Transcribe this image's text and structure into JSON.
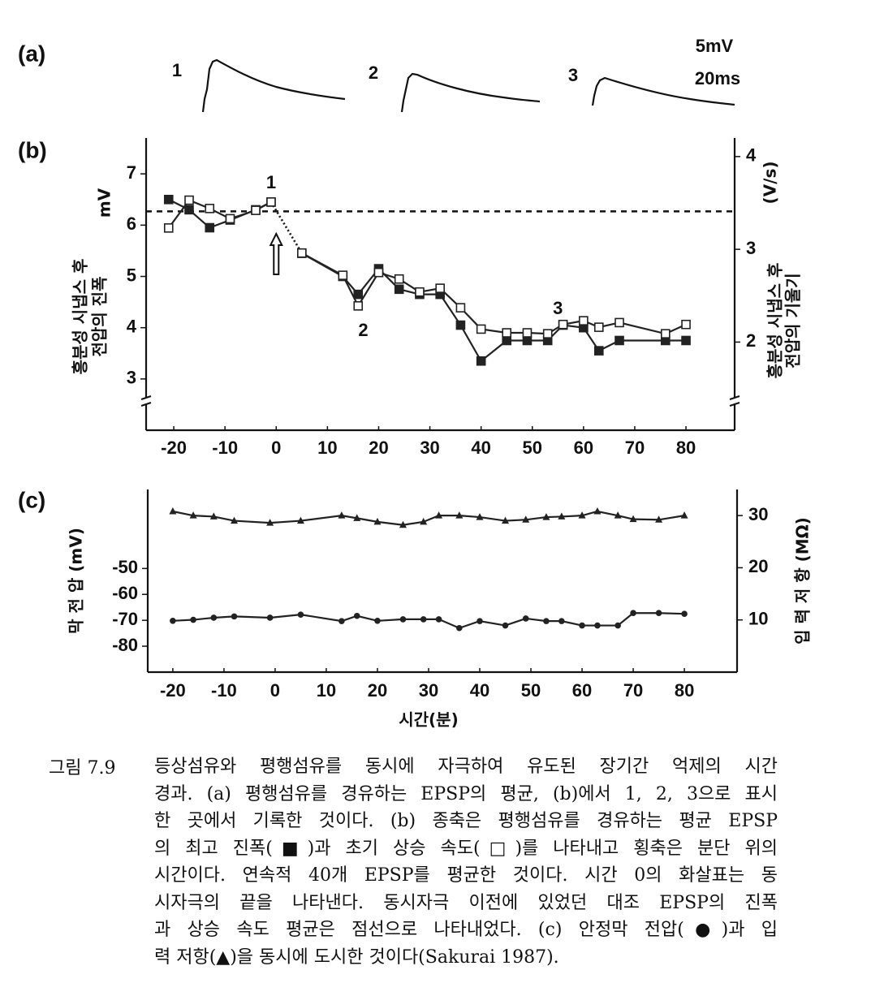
{
  "panel_a": {
    "label": "(a)",
    "trace_labels": [
      "1",
      "2",
      "3"
    ],
    "scale": [
      "5mV",
      "20ms"
    ]
  },
  "chart_data": [
    {
      "type": "line",
      "title": "(b)",
      "x": [
        -21,
        -17,
        -13,
        -9,
        -4,
        -1,
        5,
        13,
        16,
        20,
        24,
        28,
        32,
        36,
        40,
        45,
        49,
        53,
        56,
        60,
        63,
        67,
        76,
        80
      ],
      "series": [
        {
          "color": "#222",
          "marker": "square-filled",
          "values": [
            6.5,
            6.3,
            5.95,
            6.1,
            6.3,
            6.45,
            5.45,
            5.0,
            4.65,
            5.15,
            4.75,
            4.65,
            4.65,
            4.05,
            3.35,
            3.75,
            3.75,
            3.75,
            4.05,
            4.0,
            3.55,
            3.75,
            3.75,
            3.75
          ]
        },
        {
          "color": "#222",
          "marker": "square-open",
          "axis": "y2",
          "values": [
            3.23,
            3.53,
            3.44,
            3.33,
            3.42,
            3.51,
            2.96,
            2.72,
            2.39,
            2.75,
            2.68,
            2.54,
            2.58,
            2.37,
            2.14,
            2.1,
            2.1,
            2.09,
            2.19,
            2.23,
            2.16,
            2.21,
            2.09,
            2.19
          ]
        }
      ],
      "xlim": [
        -25.4,
        89.5
      ],
      "xticks": [
        -20,
        -10,
        0,
        10,
        20,
        30,
        40,
        50,
        60,
        70,
        80
      ],
      "ylim": [
        2,
        7.7
      ],
      "yticks": [
        3,
        4,
        5,
        6,
        7
      ],
      "y2lim": [
        1.05,
        4.2
      ],
      "y2ticks": [
        2,
        3,
        4
      ],
      "ylabel": "mV",
      "ylabel_note": [
        "흥분성 시냅스 후",
        "전압의 진폭"
      ],
      "y2label": "(V/s)",
      "y2label_note": [
        "흥분성 시냅스 후",
        "전압의 기울기"
      ],
      "reference_line": 6.27,
      "arrow_x": 0,
      "annotations": [
        {
          "text": "1",
          "x": -1,
          "y": 6.81
        },
        {
          "text": "2",
          "x": 17,
          "y": 3.93
        },
        {
          "text": "3",
          "x": 55,
          "y": 4.36
        }
      ]
    },
    {
      "type": "line",
      "title": "(c)",
      "x": [
        -20,
        -16,
        -12,
        -8,
        -1,
        5,
        13,
        16,
        20,
        25,
        29,
        32,
        36,
        40,
        45,
        49,
        53,
        56,
        60,
        63,
        67,
        70,
        75,
        80
      ],
      "series": [
        {
          "color": "#222",
          "marker": "circle",
          "values": [
            -70.2,
            -69.8,
            -69,
            -68.5,
            -69,
            -67.8,
            -70.3,
            -68.3,
            -70.2,
            -69.6,
            -69.6,
            -69.6,
            -73,
            -70.3,
            -72,
            -69.3,
            -70.3,
            -70.3,
            -72,
            -72,
            -72,
            -67.2,
            -67.2,
            -67.5
          ]
        },
        {
          "color": "#222",
          "marker": "triangle",
          "axis": "y2",
          "values": [
            30.8,
            30,
            29.8,
            29,
            28.6,
            29,
            30,
            29.5,
            28.8,
            28.2,
            28.8,
            30,
            30,
            29.7,
            29,
            29.2,
            29.7,
            29.8,
            30,
            30.8,
            30,
            29.3,
            29.2,
            30
          ]
        }
      ],
      "xlim": [
        -24.9,
        90.3
      ],
      "xticks": [
        -20,
        -10,
        0,
        10,
        20,
        30,
        40,
        50,
        60,
        70,
        80
      ],
      "ylim": [
        -90,
        -19.5
      ],
      "yticks": [
        -80,
        -70,
        -60,
        -50
      ],
      "y2lim": [
        0,
        35
      ],
      "y2ticks": [
        10,
        20,
        30
      ],
      "xlabel": "시간(분)",
      "ylabel": "막 전 압 (mV)",
      "y2label": "입 력 저 항 (MΩ)"
    }
  ],
  "caption": {
    "number": "그림 7.9",
    "lines": [
      "등상섬유와 평행섬유를 동시에 자극하여 유도된 장기간 억제의 시간",
      "경과. (a) 평행섬유를 경유하는 EPSP의 평균, (b)에서 1, 2, 3으로 표시",
      "한 곳에서 기록한 것이다. (b) 종축은 평행섬유를 경유하는 평균 EPSP",
      "의 최고 진폭(■)과 초기 상승 속도(□)를 나타내고 횡축은 분단 위의",
      "시간이다. 연속적 40개 EPSP를 평균한 것이다. 시간 0의 화살표는 동",
      "시자극의 끝을 나타낸다. 동시자극 이전에 있었던 대조 EPSP의 진폭",
      "과 상승 속도 평균은 점선으로 나타내었다. (c) 안정막 전압(●)과 입",
      "력 저항(▲)을 동시에 도시한 것이다(Sakurai 1987)."
    ]
  }
}
